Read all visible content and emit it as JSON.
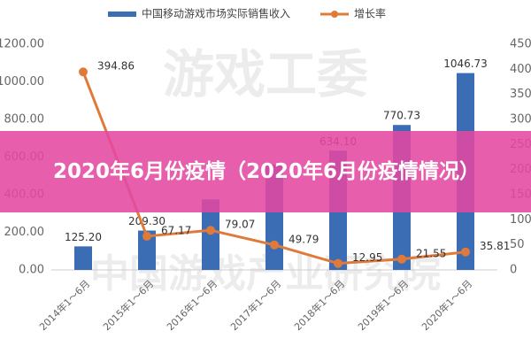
{
  "chart_data": {
    "type": "bar-line",
    "legend": {
      "position": "top"
    },
    "watermarks": [
      "游戏工委",
      "中国游戏产业研究院"
    ],
    "categories": [
      "2014年1～6月",
      "2015年1～6月",
      "2016年1～6月",
      "2017年1～6月",
      "2018年1～6月",
      "2019年1～6月",
      "2020年1～6月"
    ],
    "series": [
      {
        "name": "中国移动游戏市场实际销售收入",
        "color": "#3b6db4",
        "type": "bar",
        "values": [
          125.2,
          209.3,
          374.8,
          561.2,
          634.1,
          770.73,
          1046.73
        ],
        "value_labels": [
          "125.20",
          "209.30",
          null,
          null,
          "634.10",
          "770.73",
          "1046.73"
        ]
      },
      {
        "name": "增长率",
        "color": "#e07a3a",
        "type": "line",
        "axis": "y2",
        "values": [
          394.86,
          67.17,
          79.07,
          49.79,
          12.95,
          21.55,
          35.81
        ]
      }
    ],
    "ylim": [
      0,
      1200
    ],
    "yticks": [
      {
        "value": 0,
        "label": "0.00"
      },
      {
        "value": 200,
        "label": "200.00"
      },
      {
        "value": 400,
        "label": "400.00"
      },
      {
        "value": 600,
        "label": "600.00"
      },
      {
        "value": 800,
        "label": "800.00"
      },
      {
        "value": 1000,
        "label": "1000.00"
      },
      {
        "value": 1200,
        "label": "1200.00"
      }
    ],
    "y2lim": [
      0,
      450
    ],
    "y2ticks": [
      0,
      50,
      100,
      150,
      200,
      250,
      300,
      350,
      400,
      450
    ]
  },
  "banner": {
    "text": "2020年6月份疫情（2020年6月份疫情情况）"
  }
}
